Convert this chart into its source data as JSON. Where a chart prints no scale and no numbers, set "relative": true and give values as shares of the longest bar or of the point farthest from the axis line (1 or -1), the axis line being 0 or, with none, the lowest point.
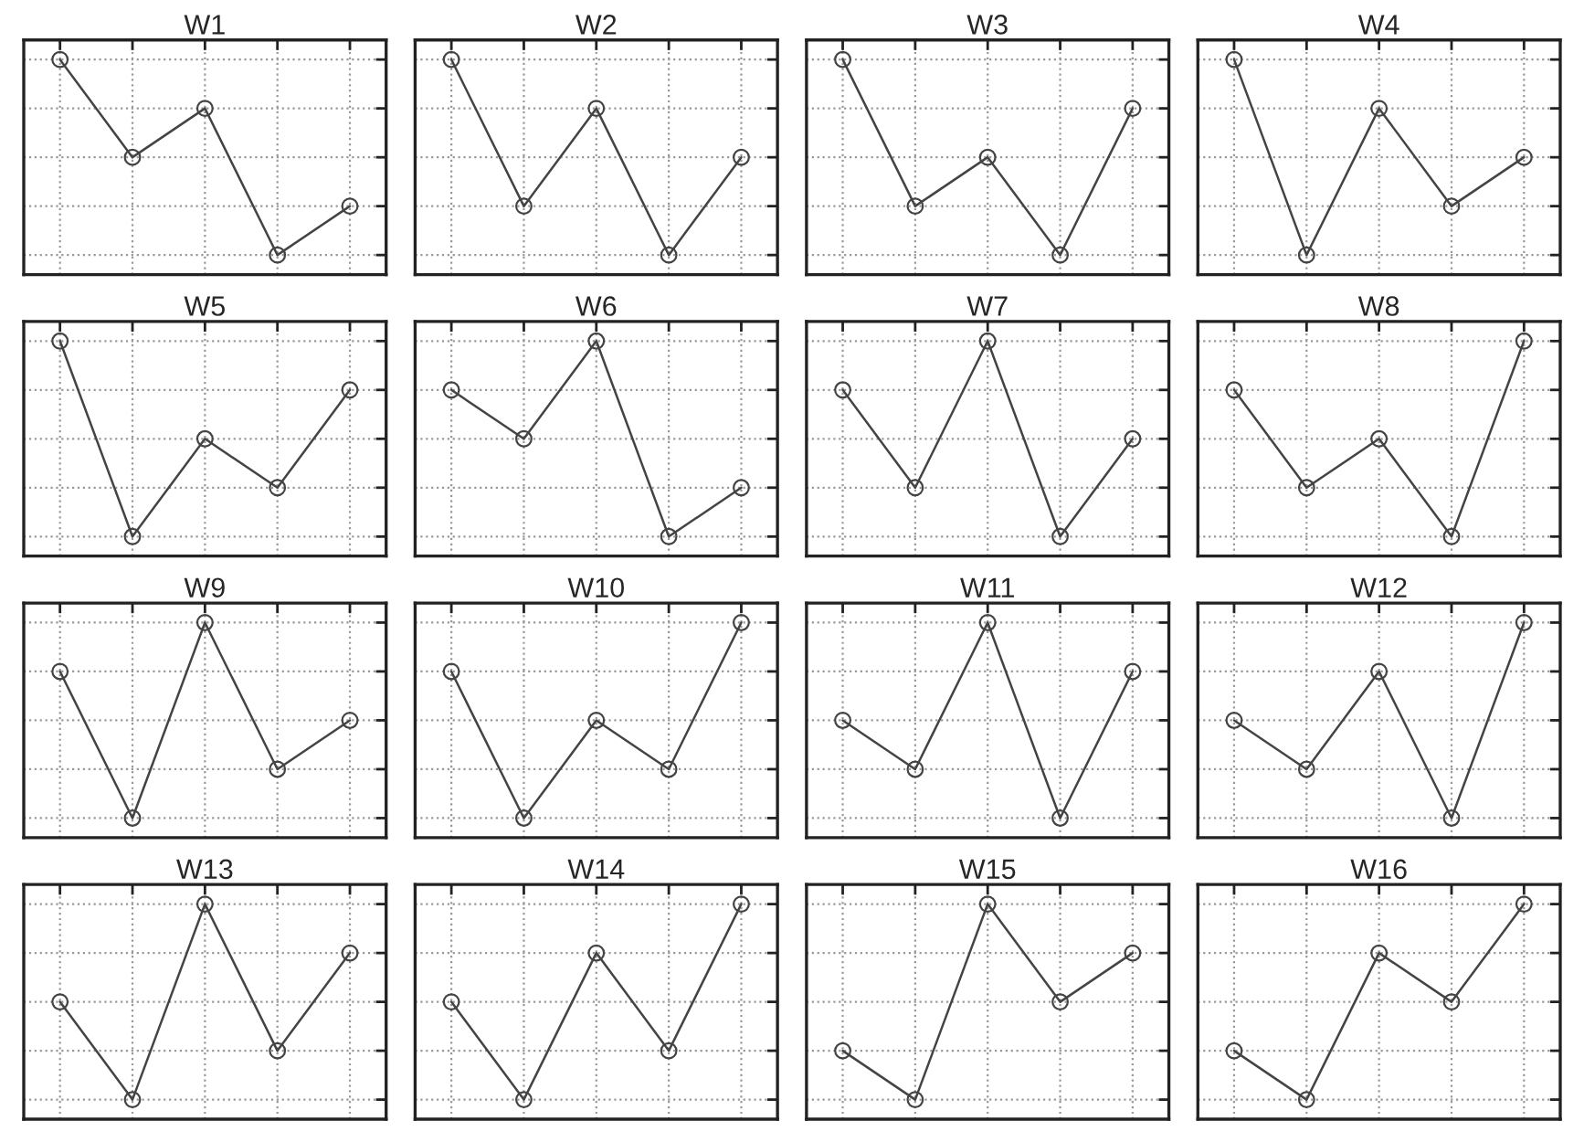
{
  "chart_data": [
    {
      "type": "line",
      "title": "W1",
      "categories": [
        null,
        null,
        null,
        null,
        null
      ],
      "relative": true,
      "series": [
        {
          "color": "#444444",
          "values": [
            1,
            0.5,
            0.75,
            0,
            0.25
          ]
        }
      ],
      "marker": "circle",
      "grid": true
    },
    {
      "type": "line",
      "title": "W2",
      "categories": [
        null,
        null,
        null,
        null,
        null
      ],
      "relative": true,
      "series": [
        {
          "color": "#444444",
          "values": [
            1,
            0.25,
            0.75,
            0,
            0.5
          ]
        }
      ],
      "marker": "circle",
      "grid": true
    },
    {
      "type": "line",
      "title": "W3",
      "categories": [
        null,
        null,
        null,
        null,
        null
      ],
      "relative": true,
      "series": [
        {
          "color": "#444444",
          "values": [
            1,
            0.25,
            0.5,
            0,
            0.75
          ]
        }
      ],
      "marker": "circle",
      "grid": true
    },
    {
      "type": "line",
      "title": "W4",
      "categories": [
        null,
        null,
        null,
        null,
        null
      ],
      "relative": true,
      "series": [
        {
          "color": "#444444",
          "values": [
            1,
            0,
            0.75,
            0.25,
            0.5
          ]
        }
      ],
      "marker": "circle",
      "grid": true
    },
    {
      "type": "line",
      "title": "W5",
      "categories": [
        null,
        null,
        null,
        null,
        null
      ],
      "relative": true,
      "series": [
        {
          "color": "#444444",
          "values": [
            1,
            0,
            0.5,
            0.25,
            0.75
          ]
        }
      ],
      "marker": "circle",
      "grid": true
    },
    {
      "type": "line",
      "title": "W6",
      "categories": [
        null,
        null,
        null,
        null,
        null
      ],
      "relative": true,
      "series": [
        {
          "color": "#444444",
          "values": [
            0.75,
            0.5,
            1,
            0,
            0.25
          ]
        }
      ],
      "marker": "circle",
      "grid": true
    },
    {
      "type": "line",
      "title": "W7",
      "categories": [
        null,
        null,
        null,
        null,
        null
      ],
      "relative": true,
      "series": [
        {
          "color": "#444444",
          "values": [
            0.75,
            0.25,
            1,
            0,
            0.5
          ]
        }
      ],
      "marker": "circle",
      "grid": true
    },
    {
      "type": "line",
      "title": "W8",
      "categories": [
        null,
        null,
        null,
        null,
        null
      ],
      "relative": true,
      "series": [
        {
          "color": "#444444",
          "values": [
            0.75,
            0.25,
            0.5,
            0,
            1
          ]
        }
      ],
      "marker": "circle",
      "grid": true
    },
    {
      "type": "line",
      "title": "W9",
      "categories": [
        null,
        null,
        null,
        null,
        null
      ],
      "relative": true,
      "series": [
        {
          "color": "#444444",
          "values": [
            0.75,
            0,
            1,
            0.25,
            0.5
          ]
        }
      ],
      "marker": "circle",
      "grid": true
    },
    {
      "type": "line",
      "title": "W10",
      "categories": [
        null,
        null,
        null,
        null,
        null
      ],
      "relative": true,
      "series": [
        {
          "color": "#444444",
          "values": [
            0.75,
            0,
            0.5,
            0.25,
            1
          ]
        }
      ],
      "marker": "circle",
      "grid": true
    },
    {
      "type": "line",
      "title": "W11",
      "categories": [
        null,
        null,
        null,
        null,
        null
      ],
      "relative": true,
      "series": [
        {
          "color": "#444444",
          "values": [
            0.5,
            0.25,
            1,
            0,
            0.75
          ]
        }
      ],
      "marker": "circle",
      "grid": true
    },
    {
      "type": "line",
      "title": "W12",
      "categories": [
        null,
        null,
        null,
        null,
        null
      ],
      "relative": true,
      "series": [
        {
          "color": "#444444",
          "values": [
            0.5,
            0.25,
            0.75,
            0,
            1
          ]
        }
      ],
      "marker": "circle",
      "grid": true
    },
    {
      "type": "line",
      "title": "W13",
      "categories": [
        null,
        null,
        null,
        null,
        null
      ],
      "relative": true,
      "series": [
        {
          "color": "#444444",
          "values": [
            0.5,
            0,
            1,
            0.25,
            0.75
          ]
        }
      ],
      "marker": "circle",
      "grid": true
    },
    {
      "type": "line",
      "title": "W14",
      "categories": [
        null,
        null,
        null,
        null,
        null
      ],
      "relative": true,
      "series": [
        {
          "color": "#444444",
          "values": [
            0.5,
            0,
            0.75,
            0.25,
            1
          ]
        }
      ],
      "marker": "circle",
      "grid": true
    },
    {
      "type": "line",
      "title": "W15",
      "categories": [
        null,
        null,
        null,
        null,
        null
      ],
      "relative": true,
      "series": [
        {
          "color": "#444444",
          "values": [
            0.25,
            0,
            1,
            0.5,
            0.75
          ]
        }
      ],
      "marker": "circle",
      "grid": true
    },
    {
      "type": "line",
      "title": "W16",
      "categories": [
        null,
        null,
        null,
        null,
        null
      ],
      "relative": true,
      "series": [
        {
          "color": "#444444",
          "values": [
            0.25,
            0,
            0.75,
            0.5,
            1
          ]
        }
      ],
      "marker": "circle",
      "grid": true
    }
  ]
}
